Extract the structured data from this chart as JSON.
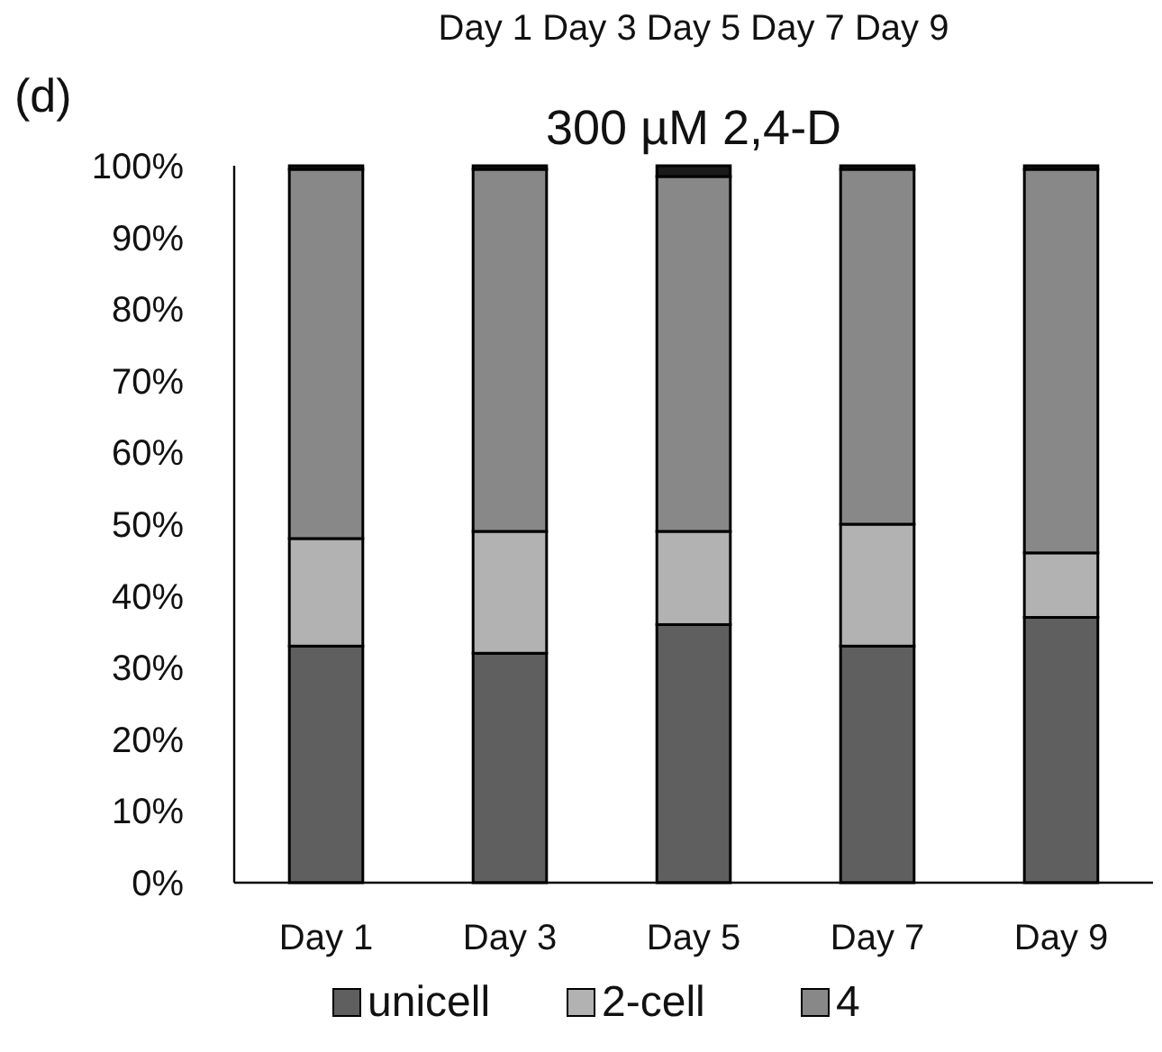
{
  "chart_data": {
    "type": "bar",
    "title": "300 µM 2,4-D",
    "stacked": true,
    "categories": [
      "Day 1",
      "Day 3",
      "Day 5",
      "Day 7",
      "Day 9"
    ],
    "series": [
      {
        "name": "unicell",
        "color": "#5f5f5f",
        "values": [
          33,
          32,
          36,
          33,
          37
        ]
      },
      {
        "name": "2-cell",
        "color": "#b2b2b2",
        "values": [
          15,
          17,
          13,
          17,
          9
        ]
      },
      {
        "name": "4",
        "color": "#888888",
        "values": [
          51.5,
          50.5,
          49.5,
          49.5,
          53.5
        ]
      },
      {
        "color": "#1a1a1a",
        "values": [
          0.5,
          0.5,
          1.5,
          0.5,
          0.5
        ]
      }
    ],
    "ylim": [
      0,
      100
    ],
    "yticks": [
      {
        "value": 0,
        "label": "0%"
      },
      {
        "value": 10,
        "label": "10%"
      },
      {
        "value": 20,
        "label": "20%"
      },
      {
        "value": 30,
        "label": "30%"
      },
      {
        "value": 40,
        "label": "40%"
      },
      {
        "value": 50,
        "label": "50%"
      },
      {
        "value": 60,
        "label": "60%"
      },
      {
        "value": 70,
        "label": "70%"
      },
      {
        "value": 80,
        "label": "80%"
      },
      {
        "value": 90,
        "label": "90%"
      },
      {
        "value": 100,
        "label": "100%"
      }
    ],
    "grid": false,
    "legend": "bottom",
    "annotations": [
      "Day 1   Day 3   Day 5   Day 7   Day 9",
      "(d)"
    ]
  }
}
